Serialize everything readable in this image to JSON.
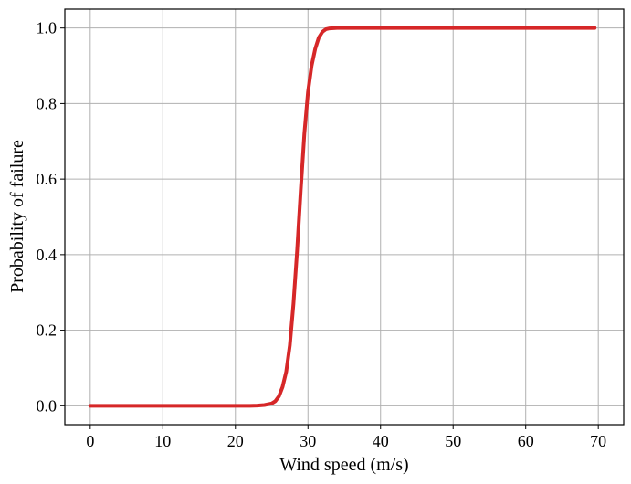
{
  "chart_data": {
    "type": "line",
    "title": "",
    "xlabel": "Wind speed (m/s)",
    "ylabel": "Probability of failure",
    "xlim": [
      -3.5,
      73.5
    ],
    "ylim": [
      -0.05,
      1.05
    ],
    "xticks": [
      0,
      10,
      20,
      30,
      40,
      50,
      60,
      70
    ],
    "yticks": [
      0.0,
      0.2,
      0.4,
      0.6,
      0.8,
      1.0
    ],
    "xtick_labels": [
      "0",
      "10",
      "20",
      "30",
      "40",
      "50",
      "60",
      "70"
    ],
    "ytick_labels": [
      "0.0",
      "0.2",
      "0.4",
      "0.6",
      "0.8",
      "1.0"
    ],
    "grid": true,
    "series": [
      {
        "color": "#d62728",
        "x": [
          0,
          5,
          10,
          15,
          20,
          22,
          23,
          24,
          25,
          25.5,
          26,
          26.5,
          27,
          27.5,
          28,
          28.5,
          29,
          29.5,
          30,
          30.5,
          31,
          31.5,
          32,
          32.5,
          33,
          34,
          35,
          40,
          50,
          60,
          69.5
        ],
        "y": [
          0,
          0,
          0,
          0,
          0,
          0,
          0.0005,
          0.002,
          0.006,
          0.012,
          0.025,
          0.05,
          0.09,
          0.16,
          0.27,
          0.41,
          0.57,
          0.72,
          0.83,
          0.9,
          0.945,
          0.975,
          0.99,
          0.997,
          0.999,
          1.0,
          1.0,
          1.0,
          1.0,
          1.0,
          1.0
        ]
      }
    ]
  }
}
